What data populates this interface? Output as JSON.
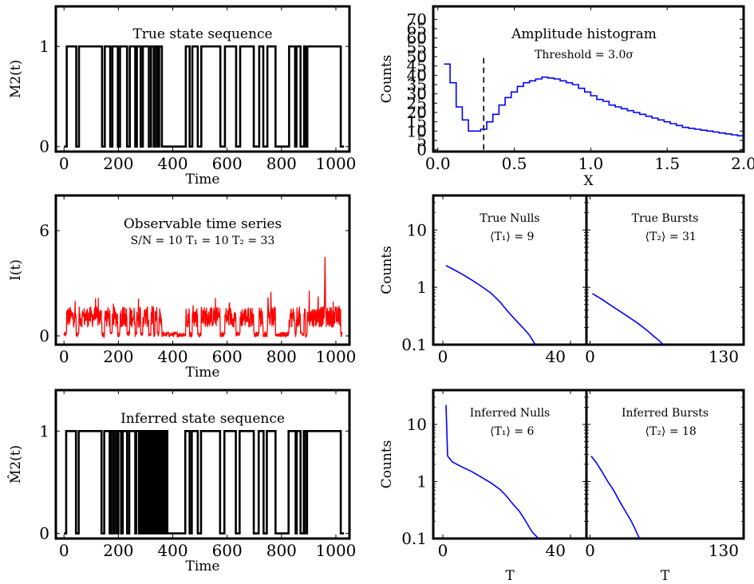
{
  "chart_data": [
    {
      "id": "true_state",
      "type": "line",
      "title": "True state sequence",
      "xlabel": "Time",
      "ylabel": "M2(t)",
      "xlim": [
        -30,
        1050
      ],
      "ylim": [
        -0.05,
        1.4
      ],
      "xticks": [
        0,
        200,
        400,
        600,
        800,
        1000
      ],
      "yticks": [
        0,
        1
      ],
      "series": [
        {
          "color": "#000000",
          "steps": [
            [
              0,
              0
            ],
            [
              10,
              1
            ],
            [
              45,
              0
            ],
            [
              55,
              1
            ],
            [
              140,
              0
            ],
            [
              150,
              1
            ],
            [
              170,
              0
            ],
            [
              178,
              1
            ],
            [
              198,
              0
            ],
            [
              206,
              1
            ],
            [
              232,
              0
            ],
            [
              242,
              1
            ],
            [
              262,
              0
            ],
            [
              268,
              1
            ],
            [
              282,
              0
            ],
            [
              290,
              1
            ],
            [
              312,
              0
            ],
            [
              320,
              1
            ],
            [
              330,
              0
            ],
            [
              335,
              1
            ],
            [
              343,
              0
            ],
            [
              350,
              1
            ],
            [
              360,
              0
            ],
            [
              448,
              1
            ],
            [
              462,
              0
            ],
            [
              472,
              1
            ],
            [
              492,
              0
            ],
            [
              505,
              1
            ],
            [
              575,
              0
            ],
            [
              592,
              1
            ],
            [
              633,
              0
            ],
            [
              648,
              1
            ],
            [
              698,
              0
            ],
            [
              718,
              1
            ],
            [
              733,
              0
            ],
            [
              748,
              1
            ],
            [
              778,
              0
            ],
            [
              828,
              1
            ],
            [
              850,
              0
            ],
            [
              855,
              1
            ],
            [
              870,
              0
            ],
            [
              883,
              1
            ],
            [
              888,
              0
            ],
            [
              895,
              1
            ],
            [
              1018,
              0
            ],
            [
              1030,
              0
            ]
          ]
        }
      ]
    },
    {
      "id": "amplitude_hist",
      "type": "line",
      "title": "Amplitude histogram",
      "annotation": "Threshold = 3.0σ",
      "xlabel": "X",
      "ylabel": "Counts",
      "xlim": [
        -0.03,
        2.0
      ],
      "ylim": [
        -1,
        77
      ],
      "xticks": [
        0.0,
        0.5,
        1.0,
        1.5,
        2.0
      ],
      "xtick_labels": [
        "0.0",
        "0.5",
        "1.0",
        "1.5",
        "2.0"
      ],
      "yticks": [
        0,
        5,
        10,
        15,
        20,
        25,
        30,
        35,
        40,
        45,
        50,
        55,
        60,
        65,
        70
      ],
      "threshold_x": 0.3,
      "threshold_ytop": 50,
      "series": [
        {
          "color": "#0000ff",
          "bin_width": 0.04,
          "first_edge": 0.04,
          "counts": [
            46,
            36,
            23,
            16,
            10,
            10,
            11,
            15,
            19,
            24,
            28,
            31,
            34,
            36,
            37,
            38,
            39,
            38.5,
            38,
            37,
            36,
            35,
            33,
            31,
            29,
            27,
            26,
            24,
            23,
            22,
            21,
            20,
            19,
            18,
            17,
            16,
            15,
            14,
            13,
            12,
            11.5,
            11,
            10.5,
            10,
            9.5,
            9,
            8.5,
            8,
            7.5,
            7,
            6.5,
            6,
            5.5,
            5,
            4.5,
            4,
            3.5,
            3
          ]
        }
      ]
    },
    {
      "id": "observable",
      "type": "line",
      "title": "Observable time series",
      "subtitle": "S/N = 10    T₁ = 10    T₂ = 33",
      "xlabel": "Time",
      "ylabel": "I(t)",
      "xlim": [
        -30,
        1050
      ],
      "ylim": [
        -0.5,
        8
      ],
      "xticks": [
        0,
        200,
        400,
        600,
        800,
        1000
      ],
      "yticks": [
        0,
        6
      ],
      "series": [
        {
          "color": "#ff0000",
          "n_points": 1024,
          "spike_at": 960,
          "spike_value": 4.5
        }
      ]
    },
    {
      "id": "true_nulls",
      "type": "line",
      "label": "True Nulls",
      "mean": "⟨T₁⟩ = 9",
      "ylabel": "Counts",
      "yscale": "log",
      "xlim": [
        -3,
        45
      ],
      "ylim": [
        0.1,
        40
      ],
      "xticks": [
        0,
        40
      ],
      "yticks": [
        0.1,
        1,
        10
      ],
      "ytick_labels": [
        "0.1",
        "1",
        "10"
      ],
      "series": [
        {
          "color": "#0000ff",
          "points": [
            [
              1,
              2.4
            ],
            [
              3,
              2.1
            ],
            [
              6,
              1.7
            ],
            [
              9,
              1.35
            ],
            [
              12,
              1.05
            ],
            [
              15,
              0.8
            ],
            [
              18,
              0.55
            ],
            [
              20,
              0.4
            ],
            [
              22,
              0.3
            ],
            [
              25,
              0.2
            ],
            [
              27,
              0.15
            ],
            [
              29,
              0.1
            ]
          ]
        }
      ]
    },
    {
      "id": "true_bursts",
      "type": "line",
      "label": "True Bursts",
      "mean": "⟨T₂⟩ = 31",
      "yscale": "log",
      "xlim": [
        -3,
        130
      ],
      "ylim": [
        0.1,
        40
      ],
      "xticks": [
        0,
        130
      ],
      "yticks": [
        0.1,
        1,
        10
      ],
      "series": [
        {
          "color": "#0000ff",
          "points": [
            [
              2,
              0.78
            ],
            [
              10,
              0.62
            ],
            [
              20,
              0.45
            ],
            [
              30,
              0.33
            ],
            [
              40,
              0.24
            ],
            [
              48,
              0.18
            ],
            [
              54,
              0.14
            ],
            [
              58,
              0.12
            ],
            [
              62,
              0.1
            ]
          ]
        }
      ]
    },
    {
      "id": "inferred_state",
      "type": "line",
      "title": "Inferred state sequence",
      "xlabel": "Time",
      "ylabel": "M̂2(t)",
      "xlim": [
        -30,
        1050
      ],
      "ylim": [
        -0.05,
        1.4
      ],
      "xticks": [
        0,
        200,
        400,
        600,
        800,
        1000
      ],
      "yticks": [
        0,
        1
      ],
      "series": [
        {
          "color": "#000000",
          "steps": [
            [
              0,
              0
            ],
            [
              8,
              1
            ],
            [
              44,
              0
            ],
            [
              54,
              1
            ],
            [
              138,
              0
            ],
            [
              148,
              1
            ],
            [
              168,
              0
            ],
            [
              174,
              1
            ],
            [
              182,
              0
            ],
            [
              186,
              1
            ],
            [
              194,
              0
            ],
            [
              200,
              1
            ],
            [
              210,
              0
            ],
            [
              216,
              1
            ],
            [
              232,
              0
            ],
            [
              240,
              1
            ],
            [
              262,
              0
            ],
            [
              266,
              1
            ],
            [
              276,
              0
            ],
            [
              282,
              1
            ],
            [
              288,
              0
            ],
            [
              294,
              1
            ],
            [
              300,
              0
            ],
            [
              304,
              1
            ],
            [
              310,
              0
            ],
            [
              314,
              1
            ],
            [
              320,
              0
            ],
            [
              324,
              1
            ],
            [
              330,
              0
            ],
            [
              334,
              1
            ],
            [
              340,
              0
            ],
            [
              344,
              1
            ],
            [
              350,
              0
            ],
            [
              354,
              1
            ],
            [
              360,
              0
            ],
            [
              364,
              1
            ],
            [
              370,
              0
            ],
            [
              374,
              1
            ],
            [
              380,
              0
            ],
            [
              446,
              1
            ],
            [
              462,
              0
            ],
            [
              470,
              1
            ],
            [
              492,
              0
            ],
            [
              504,
              1
            ],
            [
              574,
              0
            ],
            [
              590,
              1
            ],
            [
              632,
              0
            ],
            [
              646,
              1
            ],
            [
              698,
              0
            ],
            [
              716,
              1
            ],
            [
              734,
              0
            ],
            [
              746,
              1
            ],
            [
              778,
              0
            ],
            [
              826,
              1
            ],
            [
              852,
              0
            ],
            [
              856,
              1
            ],
            [
              870,
              0
            ],
            [
              882,
              1
            ],
            [
              890,
              0
            ],
            [
              894,
              1
            ],
            [
              1018,
              0
            ],
            [
              1030,
              0
            ]
          ]
        }
      ]
    },
    {
      "id": "inferred_nulls",
      "type": "line",
      "label": "Inferred Nulls",
      "mean": "⟨T₁⟩ = 6",
      "xlabel": "T",
      "ylabel": "Counts",
      "yscale": "log",
      "xlim": [
        -3,
        45
      ],
      "ylim": [
        0.1,
        40
      ],
      "xticks": [
        0,
        40
      ],
      "yticks": [
        0.1,
        1,
        10
      ],
      "ytick_labels": [
        "0.1",
        "1",
        "10"
      ],
      "series": [
        {
          "color": "#0000ff",
          "points": [
            [
              1,
              22
            ],
            [
              1.5,
              2.8
            ],
            [
              3,
              2.2
            ],
            [
              6,
              1.8
            ],
            [
              9,
              1.5
            ],
            [
              12,
              1.2
            ],
            [
              15,
              0.95
            ],
            [
              18,
              0.72
            ],
            [
              20,
              0.55
            ],
            [
              22,
              0.4
            ],
            [
              24,
              0.3
            ],
            [
              26,
              0.2
            ],
            [
              28,
              0.13
            ],
            [
              30,
              0.1
            ]
          ]
        }
      ]
    },
    {
      "id": "inferred_bursts",
      "type": "line",
      "label": "Inferred Bursts",
      "mean": "⟨T₂⟩ = 18",
      "xlabel": "T",
      "yscale": "log",
      "xlim": [
        -3,
        130
      ],
      "ylim": [
        0.1,
        40
      ],
      "xticks": [
        0,
        130
      ],
      "yticks": [
        0.1,
        1,
        10
      ],
      "series": [
        {
          "color": "#0000ff",
          "points": [
            [
              1,
              2.8
            ],
            [
              5,
              2.2
            ],
            [
              10,
              1.5
            ],
            [
              15,
              1.0
            ],
            [
              20,
              0.7
            ],
            [
              25,
              0.45
            ],
            [
              30,
              0.3
            ],
            [
              35,
              0.2
            ],
            [
              38,
              0.15
            ],
            [
              40,
              0.12
            ],
            [
              42,
              0.1
            ]
          ]
        }
      ]
    }
  ]
}
